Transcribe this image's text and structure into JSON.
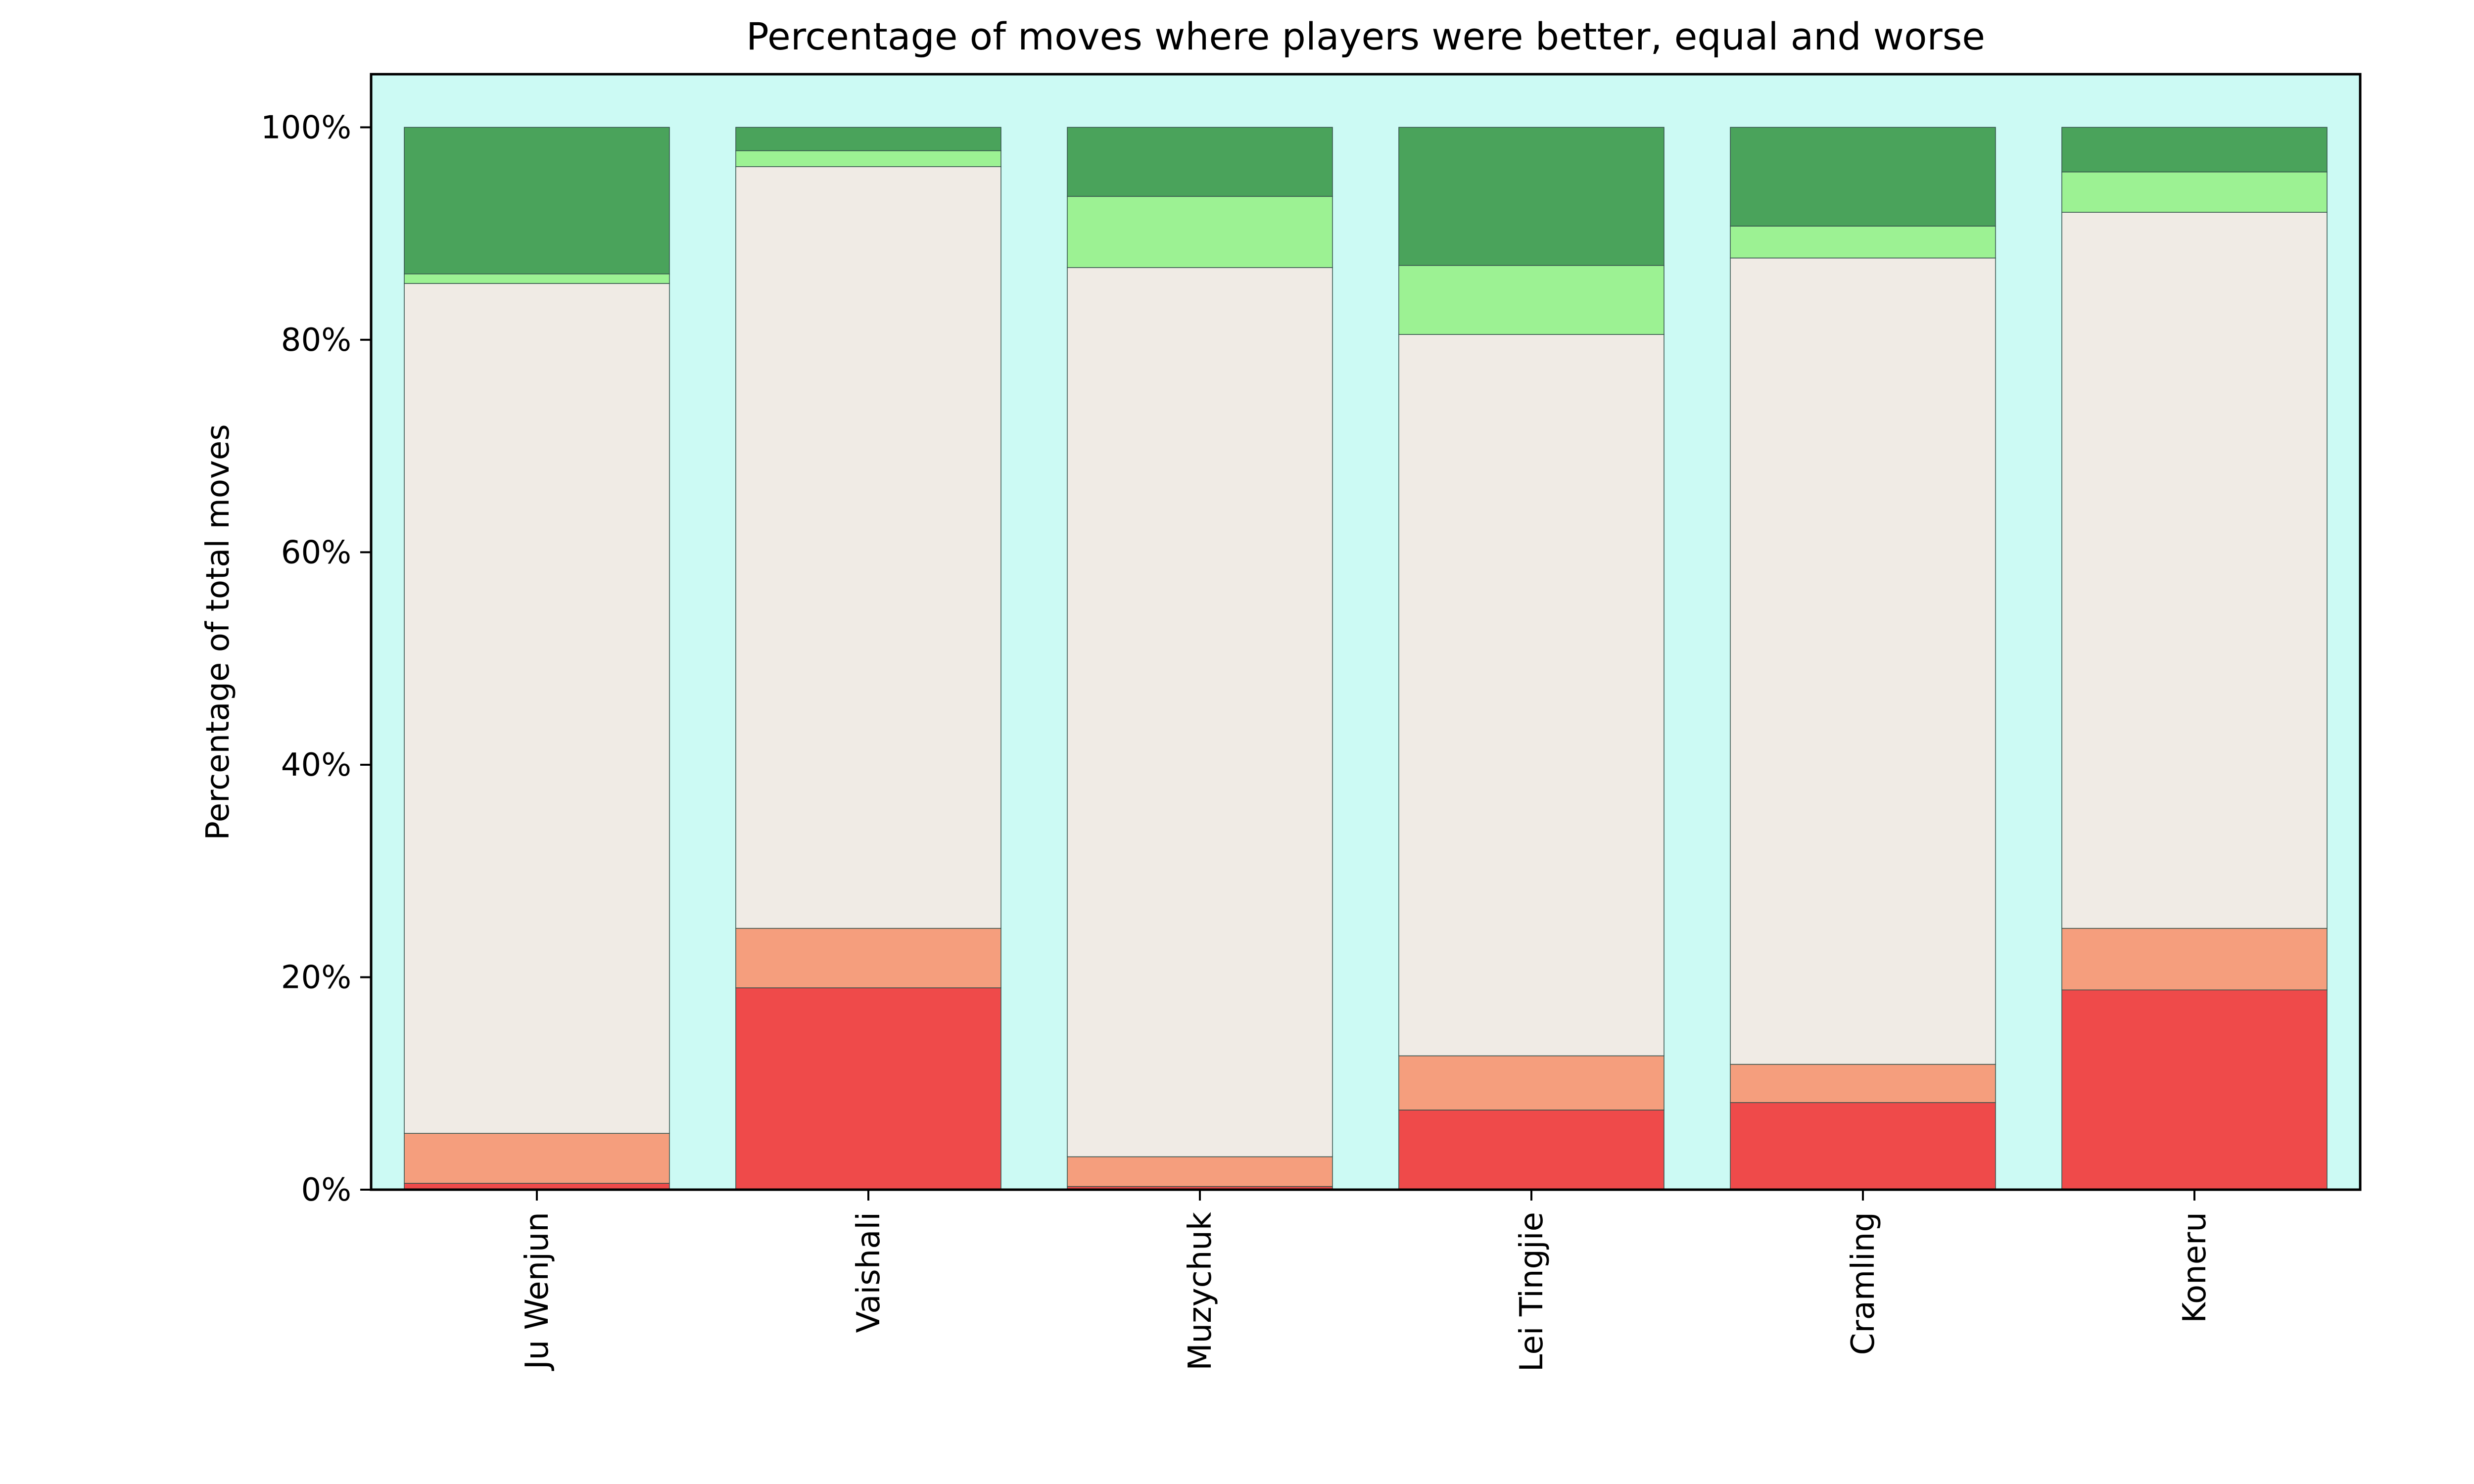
{
  "chart_data": {
    "type": "bar",
    "stacked": true,
    "title": "Percentage of moves where players were better, equal and worse",
    "xlabel": "",
    "ylabel": "Percentage of total moves",
    "ylim": [
      0,
      105
    ],
    "yticks": [
      0,
      20,
      40,
      60,
      80,
      100
    ],
    "ytick_labels": [
      "0%",
      "20%",
      "40%",
      "60%",
      "80%",
      "100%"
    ],
    "categories": [
      "Ju Wenjun",
      "Vaishali",
      "Muzychuk",
      "Lei Tingjie",
      "Cramling",
      "Koneru"
    ],
    "grid": false,
    "legend": "none",
    "plot_background": "#ccfaf4",
    "series": [
      {
        "color": "#ef4a4a",
        "values": [
          0.6,
          19.0,
          0.3,
          7.5,
          8.2,
          18.8
        ]
      },
      {
        "color": "#f59e7d",
        "values": [
          4.7,
          5.6,
          2.8,
          5.1,
          3.6,
          5.8
        ]
      },
      {
        "color": "#f0ebe5",
        "values": [
          80.0,
          71.7,
          83.7,
          67.9,
          75.9,
          67.4
        ]
      },
      {
        "color": "#9cf293",
        "values": [
          0.9,
          1.5,
          6.7,
          6.5,
          3.0,
          3.8
        ]
      },
      {
        "color": "#4aa35b",
        "values": [
          13.8,
          2.2,
          6.5,
          13.0,
          9.3,
          4.2
        ]
      }
    ]
  }
}
